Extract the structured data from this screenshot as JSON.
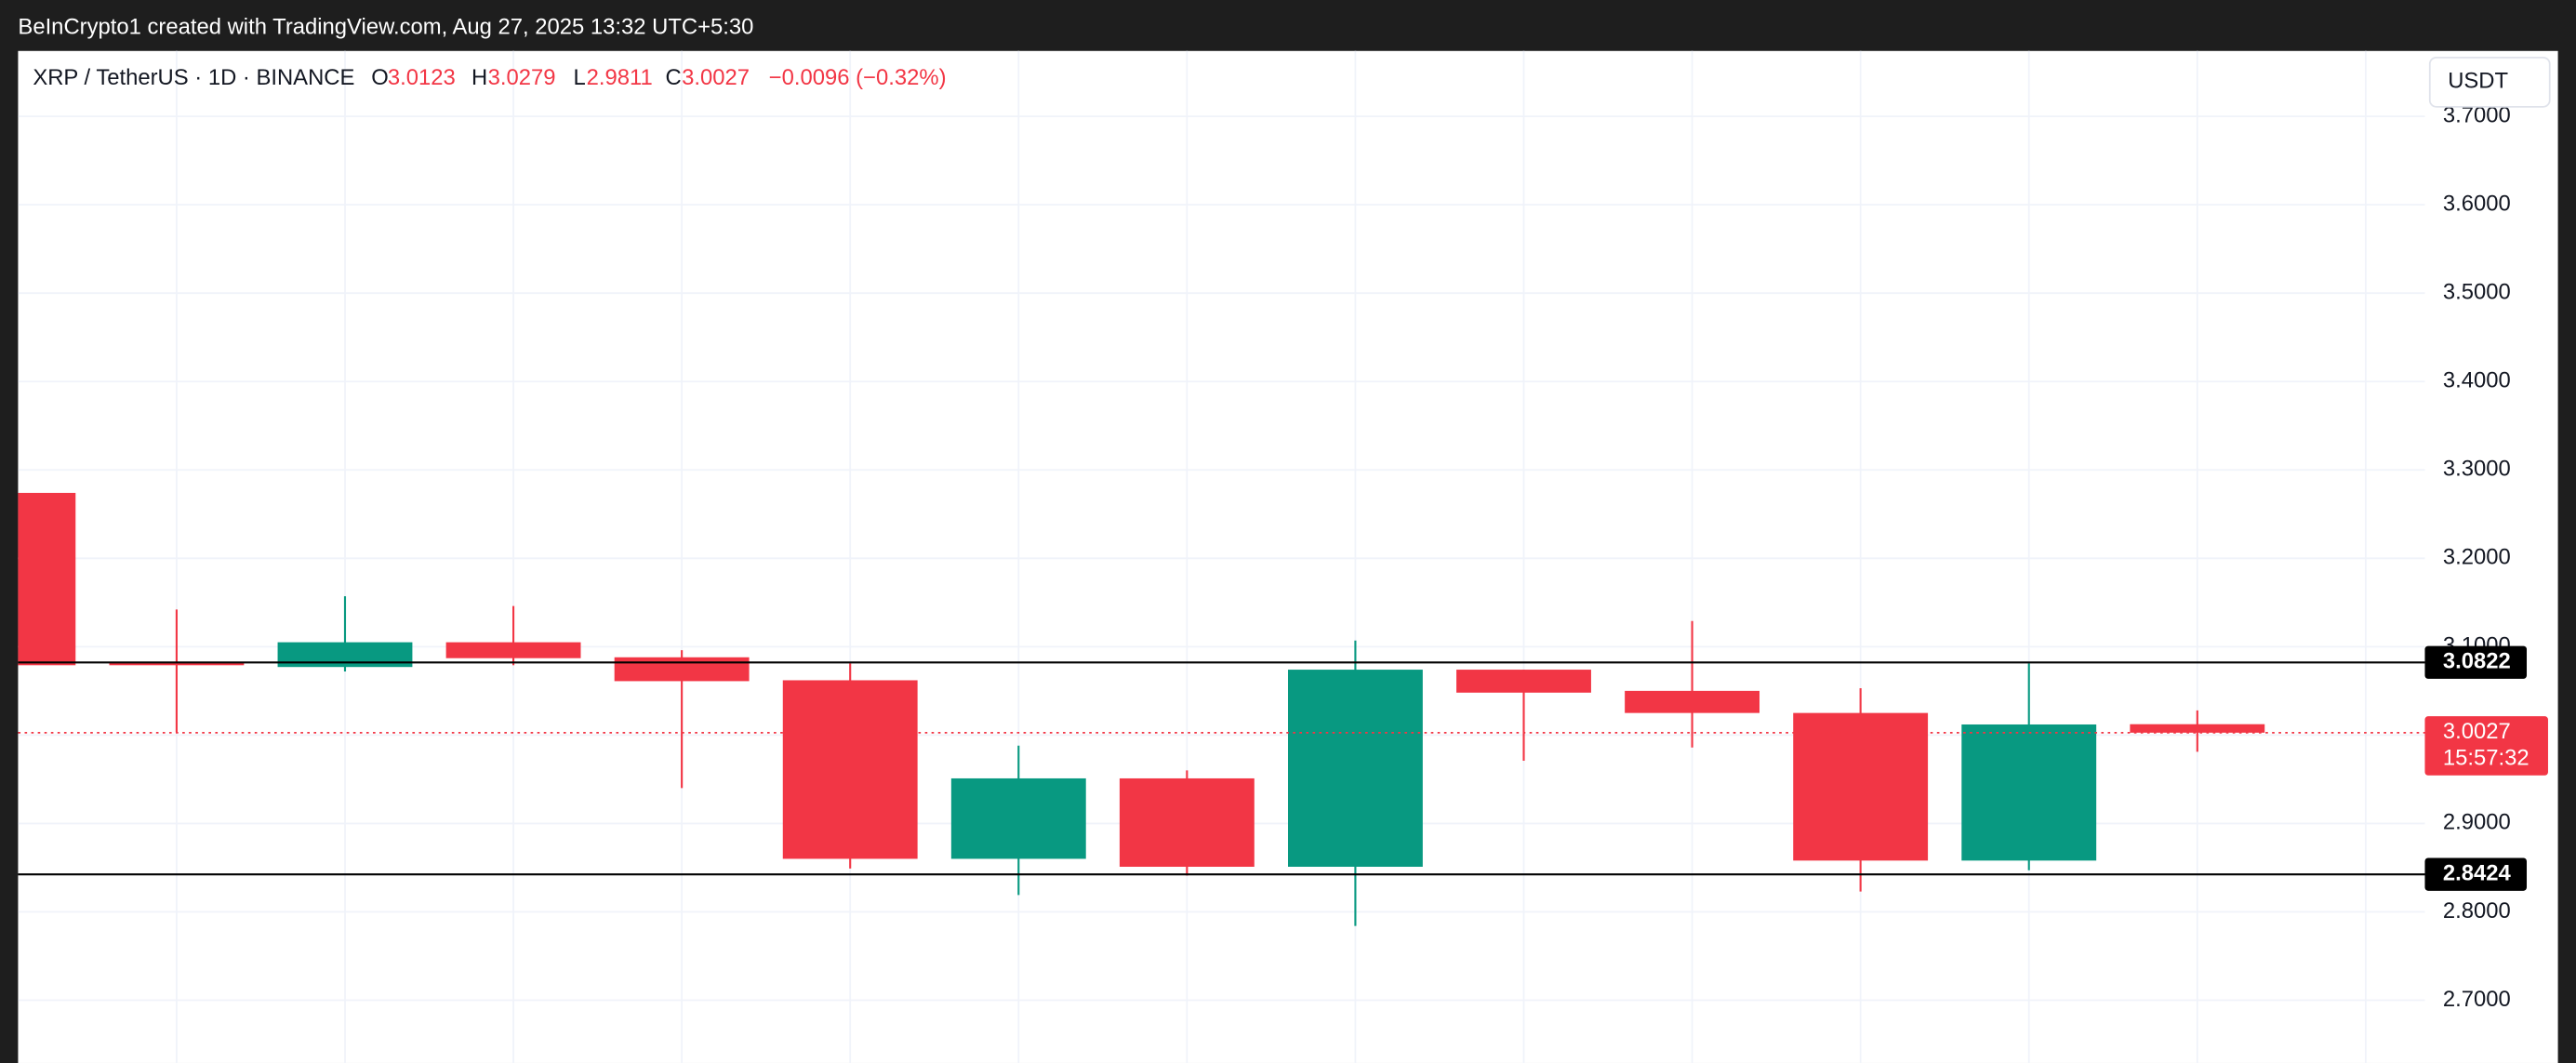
{
  "header": "BeInCrypto1 created with TradingView.com, Aug 27, 2025 13:32 UTC+5:30",
  "chart_data": {
    "type": "candlestick",
    "title": "XRP / TetherUS · 1D · BINANCE",
    "legend": {
      "open_label": "O",
      "high_label": "H",
      "low_label": "L",
      "close_label": "C",
      "change": "−0.0096 (−0.32%)"
    },
    "currency": "USDT",
    "up_color": "#089981",
    "down_color": "#f23645",
    "grid": true,
    "candles": [
      {
        "open": 3.274,
        "high": 3.28,
        "low": 3.07,
        "close": 3.079
      },
      {
        "open": 3.083,
        "high": 3.142,
        "low": 3.003,
        "close": 3.079
      },
      {
        "open": 3.077,
        "high": 3.157,
        "low": 3.072,
        "close": 3.105
      },
      {
        "open": 3.105,
        "high": 3.146,
        "low": 3.079,
        "close": 3.087
      },
      {
        "open": 3.088,
        "high": 3.096,
        "low": 2.94,
        "close": 3.061
      },
      {
        "open": 3.062,
        "high": 3.081,
        "low": 2.849,
        "close": 2.86
      },
      {
        "open": 2.86,
        "high": 2.988,
        "low": 2.819,
        "close": 2.951
      },
      {
        "open": 2.951,
        "high": 2.96,
        "low": 2.841,
        "close": 2.851
      },
      {
        "open": 2.851,
        "high": 3.107,
        "low": 2.784,
        "close": 3.074
      },
      {
        "open": 3.074,
        "high": 3.074,
        "low": 2.971,
        "close": 3.048
      },
      {
        "open": 3.05,
        "high": 3.129,
        "low": 2.986,
        "close": 3.025
      },
      {
        "open": 3.025,
        "high": 3.053,
        "low": 2.823,
        "close": 2.858
      },
      {
        "open": 2.858,
        "high": 3.081,
        "low": 2.847,
        "close": 3.012
      },
      {
        "open": 3.0123,
        "high": 3.0279,
        "low": 2.9811,
        "close": 3.0027
      }
    ],
    "levels": [
      3.0822,
      2.8424
    ],
    "countdown": "15:57:32",
    "ylim": [
      2.629,
      3.774
    ],
    "yticks": [
      {
        "value": 2.7,
        "label": "2.7000"
      },
      {
        "value": 2.8,
        "label": "2.8000"
      },
      {
        "value": 2.9,
        "label": "2.9000"
      },
      {
        "value": 3.0,
        "label": "3.0000"
      },
      {
        "value": 3.1,
        "label": "3.1000"
      },
      {
        "value": 3.2,
        "label": "3.2000"
      },
      {
        "value": 3.3,
        "label": "3.3000"
      },
      {
        "value": 3.4,
        "label": "3.4000"
      },
      {
        "value": 3.5,
        "label": "3.5000"
      },
      {
        "value": 3.6,
        "label": "3.6000"
      },
      {
        "value": 3.7,
        "label": "3.7000"
      }
    ]
  }
}
